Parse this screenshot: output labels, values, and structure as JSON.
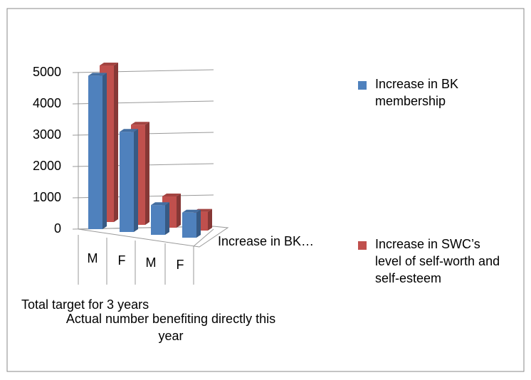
{
  "chart_data": {
    "type": "bar3d",
    "categories": [
      "M",
      "F",
      "M",
      "F"
    ],
    "category_groups": [
      "Total target for 3 years",
      "Actual number benefiting directly this year"
    ],
    "depth_label": "Increase in BK…",
    "series": [
      {
        "name": "Increase in BK membership",
        "color": "#4f81bd",
        "values": [
          4900,
          3200,
          950,
          800
        ]
      },
      {
        "name": "Increase in SWC’s level of self-worth and self-esteem",
        "color": "#c0504d",
        "values": [
          5000,
          3200,
          1000,
          600
        ]
      }
    ],
    "ylim": [
      0,
      5000
    ],
    "yticks": [
      0,
      1000,
      2000,
      3000,
      4000,
      5000
    ],
    "grid": true,
    "legend": "right"
  }
}
